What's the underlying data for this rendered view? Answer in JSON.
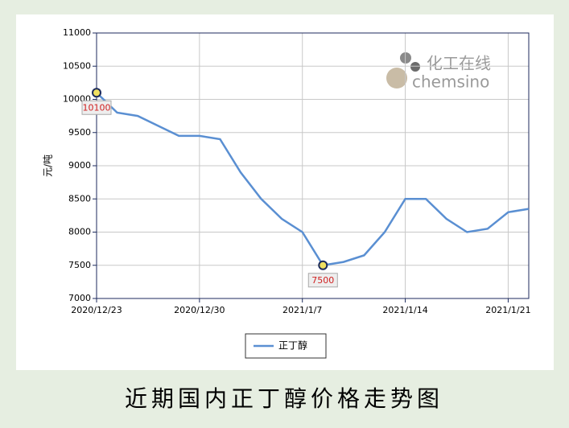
{
  "chart_data": {
    "type": "line",
    "title": "近期国内正丁醇价格走势图",
    "y_label": "元/吨",
    "watermark": [
      "化工在线",
      "chemsino"
    ],
    "categories": [
      "2020/12/23",
      null,
      null,
      null,
      null,
      "2020/12/30",
      null,
      null,
      null,
      null,
      "2021/1/7",
      null,
      null,
      null,
      null,
      "2021/1/14",
      null,
      null,
      null,
      null,
      "2021/1/21",
      null
    ],
    "series": [
      {
        "name": "正丁醇",
        "color": "#5a8fd2",
        "values": [
          10100,
          9800,
          9750,
          9600,
          9450,
          9450,
          9400,
          8900,
          8500,
          8200,
          8000,
          7500,
          7550,
          7650,
          8000,
          8500,
          8500,
          8200,
          8000,
          8050,
          8300,
          8350
        ]
      }
    ],
    "marked_points": [
      0,
      11
    ],
    "ylim": [
      7000,
      11000
    ],
    "yticks": [
      7000,
      7500,
      8000,
      8500,
      9000,
      9500,
      10000,
      10500,
      11000
    ],
    "grid": true
  }
}
